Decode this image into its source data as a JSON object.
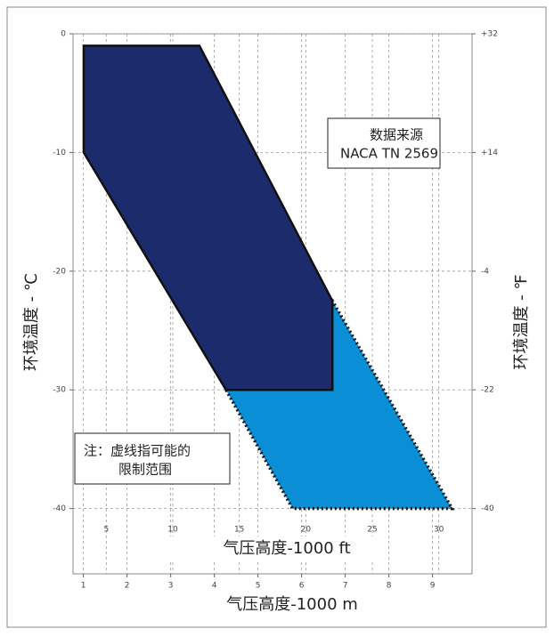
{
  "chart_data": {
    "type": "envelope",
    "y_label": "环境温度 - ℃",
    "y2_label": "环境温度 - ℉",
    "x_label": "气压高度-1000 ft",
    "x2_label": "气压高度-1000 m",
    "xlim": [
      2.5,
      32.5
    ],
    "xticks": [
      5,
      10,
      15,
      20,
      25,
      30
    ],
    "x2lim": [
      0.762,
      9.906
    ],
    "x2ticks": [
      1,
      2,
      3,
      4,
      5,
      6,
      7,
      8,
      9
    ],
    "ylim": [
      -45.5,
      0
    ],
    "yticks": [
      0,
      -10,
      -20,
      -30,
      -40
    ],
    "y2lim": [
      -49.9,
      32
    ],
    "y2ticks": [
      {
        "value": 32,
        "label": "+32"
      },
      {
        "value": 14,
        "label": "+14"
      },
      -4,
      -22,
      -40
    ],
    "grid": true,
    "regions": [
      {
        "color": "#0a8fd6",
        "style": "dotted",
        "x": [
          14,
          22,
          31,
          19
        ],
        "y": [
          -30,
          -22.5,
          -40,
          -40
        ]
      },
      {
        "color": "#1c2b6b",
        "style": "solid",
        "x": [
          3.3,
          12,
          22,
          22,
          14,
          3.3
        ],
        "y": [
          -1,
          -1,
          -22.5,
          -30,
          -30,
          -10
        ]
      }
    ],
    "annotations": [
      {
        "lines": [
          "数据来源",
          "NACA TN 2569"
        ]
      },
      {
        "lines": [
          "注：虚线指可能的",
          "限制范围"
        ]
      }
    ]
  }
}
